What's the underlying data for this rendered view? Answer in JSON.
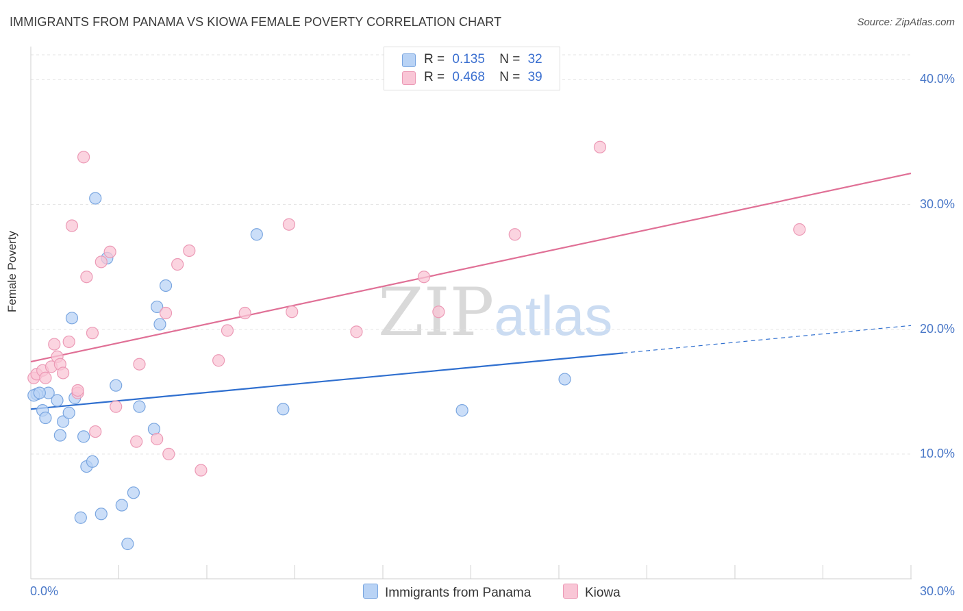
{
  "title": "IMMIGRANTS FROM PANAMA VS KIOWA FEMALE POVERTY CORRELATION CHART",
  "source": "Source: ZipAtlas.com",
  "watermark": {
    "part1": "ZIP",
    "part2": "atlas"
  },
  "colors": {
    "panama_fill": "#b9d3f5",
    "panama_stroke": "#7aa6e0",
    "panama_line": "#2f6fcf",
    "kiowa_fill": "#f9c6d6",
    "kiowa_stroke": "#ec9ab6",
    "kiowa_line": "#e07096",
    "tick_label": "#4a78c8"
  },
  "legend": {
    "rows": [
      {
        "r_label": "R =",
        "r_value": "0.135",
        "n_label": "N =",
        "n_value": "32"
      },
      {
        "r_label": "R =",
        "r_value": "0.468",
        "n_label": "N =",
        "n_value": "39"
      }
    ]
  },
  "chart_data": {
    "type": "scatter",
    "title": "IMMIGRANTS FROM PANAMA VS KIOWA FEMALE POVERTY CORRELATION CHART",
    "xlabel": "",
    "ylabel": "Female Poverty",
    "xlim": [
      0,
      30
    ],
    "ylim": [
      0,
      42
    ],
    "x_tick_labels": [
      "0.0%",
      "30.0%"
    ],
    "y_ticks": [
      10,
      20,
      30,
      40
    ],
    "y_tick_labels": [
      "10.0%",
      "20.0%",
      "30.0%",
      "40.0%"
    ],
    "grid": true,
    "legend_position": "top-center",
    "series": [
      {
        "name": "Immigrants from Panama",
        "points": [
          [
            0.2,
            14.8
          ],
          [
            0.4,
            13.5
          ],
          [
            0.5,
            12.9
          ],
          [
            0.6,
            14.9
          ],
          [
            0.9,
            14.3
          ],
          [
            1.0,
            11.5
          ],
          [
            1.1,
            12.6
          ],
          [
            1.3,
            13.3
          ],
          [
            1.4,
            20.9
          ],
          [
            1.5,
            14.5
          ],
          [
            1.7,
            4.9
          ],
          [
            1.8,
            11.4
          ],
          [
            1.9,
            9.0
          ],
          [
            2.1,
            9.4
          ],
          [
            2.2,
            30.5
          ],
          [
            2.4,
            5.2
          ],
          [
            2.6,
            25.7
          ],
          [
            2.9,
            15.5
          ],
          [
            3.1,
            5.9
          ],
          [
            3.3,
            2.8
          ],
          [
            3.5,
            6.9
          ],
          [
            3.7,
            13.8
          ],
          [
            4.2,
            12.0
          ],
          [
            4.3,
            21.8
          ],
          [
            4.4,
            20.4
          ],
          [
            4.6,
            23.5
          ],
          [
            7.7,
            27.6
          ],
          [
            8.6,
            13.6
          ],
          [
            14.7,
            13.5
          ],
          [
            18.2,
            16.0
          ],
          [
            0.1,
            14.7
          ],
          [
            0.3,
            14.9
          ]
        ],
        "trend": {
          "x0": 0,
          "y0": 13.6,
          "x1": 20.2,
          "y1": 18.1,
          "dashed_to_x": 30,
          "dashed_to_y": 20.3
        }
      },
      {
        "name": "Kiowa",
        "points": [
          [
            0.1,
            16.1
          ],
          [
            0.2,
            16.4
          ],
          [
            0.4,
            16.7
          ],
          [
            0.5,
            16.1
          ],
          [
            0.7,
            17.0
          ],
          [
            0.8,
            18.8
          ],
          [
            0.9,
            17.8
          ],
          [
            1.0,
            17.2
          ],
          [
            1.1,
            16.5
          ],
          [
            1.3,
            19.0
          ],
          [
            1.4,
            28.3
          ],
          [
            1.6,
            14.9
          ],
          [
            1.6,
            15.1
          ],
          [
            1.8,
            33.8
          ],
          [
            1.9,
            24.2
          ],
          [
            2.1,
            19.7
          ],
          [
            2.2,
            11.8
          ],
          [
            2.4,
            25.4
          ],
          [
            2.7,
            26.2
          ],
          [
            2.9,
            13.8
          ],
          [
            3.6,
            11.0
          ],
          [
            3.7,
            17.2
          ],
          [
            4.3,
            11.2
          ],
          [
            4.6,
            21.3
          ],
          [
            4.7,
            10.0
          ],
          [
            5.0,
            25.2
          ],
          [
            5.4,
            26.3
          ],
          [
            5.8,
            8.7
          ],
          [
            6.4,
            17.5
          ],
          [
            6.7,
            19.9
          ],
          [
            7.3,
            21.3
          ],
          [
            8.8,
            28.4
          ],
          [
            8.9,
            21.4
          ],
          [
            11.1,
            19.8
          ],
          [
            13.4,
            24.2
          ],
          [
            13.9,
            21.4
          ],
          [
            16.5,
            27.6
          ],
          [
            19.4,
            34.6
          ],
          [
            26.2,
            28.0
          ]
        ],
        "trend": {
          "x0": 0,
          "y0": 17.4,
          "x1": 30,
          "y1": 32.5
        }
      }
    ]
  }
}
